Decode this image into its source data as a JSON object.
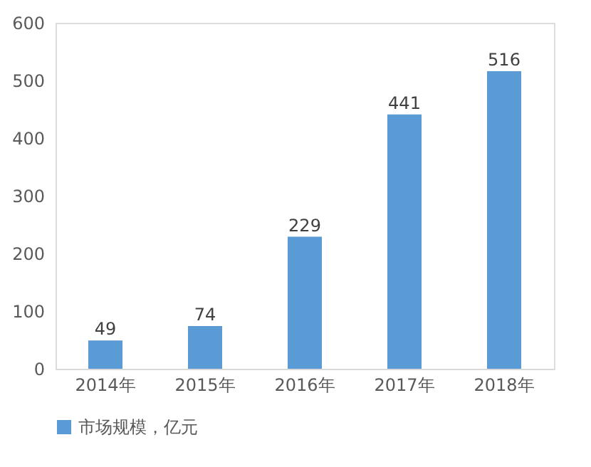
{
  "chart_data": {
    "type": "bar",
    "categories": [
      "2014年",
      "2015年",
      "2016年",
      "2017年",
      "2018年"
    ],
    "series": [
      {
        "name": "市场规模，亿元",
        "color": "#5b9bd5",
        "values": [
          49,
          74,
          229,
          441,
          516
        ]
      }
    ],
    "ylim": [
      0,
      600
    ],
    "yticks": [
      0,
      100,
      200,
      300,
      400,
      500,
      600
    ],
    "grid": false,
    "legend": "bottom",
    "data_labels": true
  }
}
